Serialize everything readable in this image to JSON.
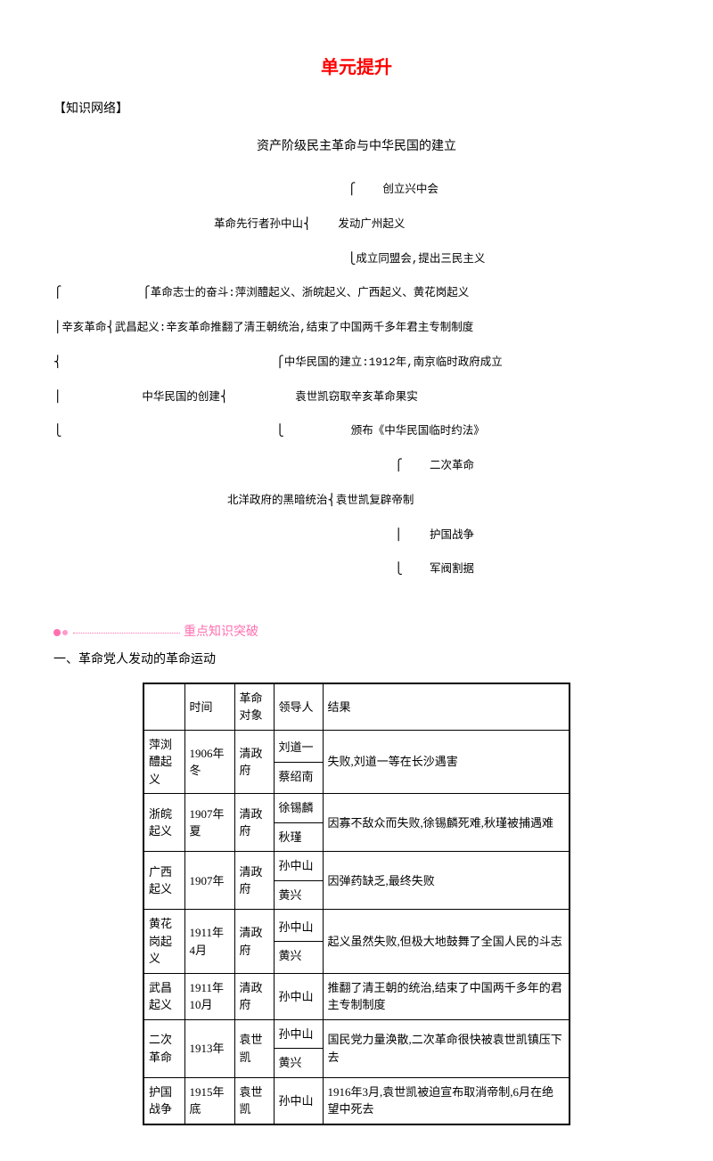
{
  "title": "单元提升",
  "knowledge_label": "【知识网络】",
  "diagram_title": "资产阶级民主革命与中华民国的建立",
  "diagram_lines": {
    "l1": "                                            ⎧    创立兴中会",
    "l2": "                        革命先行者孙中山⎨    发动广州起义",
    "l3": "                                            ⎩成立同盟会,提出三民主义",
    "l4": "⎧            ⎧革命志士的奋斗:萍浏醴起义、浙皖起义、广西起义、黄花岗起义",
    "l5": "⎪辛亥革命⎨武昌起义:辛亥革命推翻了清王朝统治,结束了中国两千多年君主专制制度",
    "l6": "⎨                                ⎧中华民国的建立:1912年,南京临时政府成立",
    "l7": "⎪            中华民国的创建⎨          袁世凯窃取辛亥革命果实",
    "l8": "⎩                                ⎩          颁布《中华民国临时约法》",
    "l9": "                                                   ⎧    二次革命",
    "l10": "                          北洋政府的黑暗统治⎨袁世凯复辟帝制",
    "l11": "                                                   ⎪    护国战争",
    "l12": "                                                   ⎩    军阀割据"
  },
  "breakthrough": "重点知识突破",
  "subheading": "一、革命党人发动的革命运动",
  "table": {
    "headers": [
      "",
      "时间",
      "革命对象",
      "领导人",
      "结果"
    ],
    "rows": [
      {
        "name": "萍浏醴起义",
        "time": "1906年冬",
        "target": "清政府",
        "leaders": [
          "刘道一",
          "蔡绍南"
        ],
        "result": "失败,刘道一等在长沙遇害"
      },
      {
        "name": "浙皖起义",
        "time": "1907年夏",
        "target": "清政府",
        "leaders": [
          "徐锡麟",
          "秋瑾"
        ],
        "result": "因寡不敌众而失败,徐锡麟死难,秋瑾被捕遇难"
      },
      {
        "name": "广西起义",
        "time": "1907年",
        "target": "清政府",
        "leaders": [
          "孙中山",
          "黄兴"
        ],
        "result": "因弹药缺乏,最终失败"
      },
      {
        "name": "黄花岗起义",
        "time": "1911年4月",
        "target": "清政府",
        "leaders": [
          "孙中山",
          "黄兴"
        ],
        "result": "起义虽然失败,但极大地鼓舞了全国人民的斗志"
      },
      {
        "name": "武昌起义",
        "time": "1911年10月",
        "target": "清政府",
        "leaders": [
          "孙中山"
        ],
        "result": "推翻了清王朝的统治,结束了中国两千多年的君主专制制度"
      },
      {
        "name": "二次革命",
        "time": "1913年",
        "target": "袁世凯",
        "leaders": [
          "孙中山",
          "黄兴"
        ],
        "result": "国民党力量涣散,二次革命很快被袁世凯镇压下去"
      },
      {
        "name": "护国战争",
        "time": "1915年底",
        "target": "袁世凯",
        "leaders": [
          "孙中山"
        ],
        "result": "1916年3月,袁世凯被迫宣布取消帝制,6月在绝望中死去"
      }
    ]
  }
}
